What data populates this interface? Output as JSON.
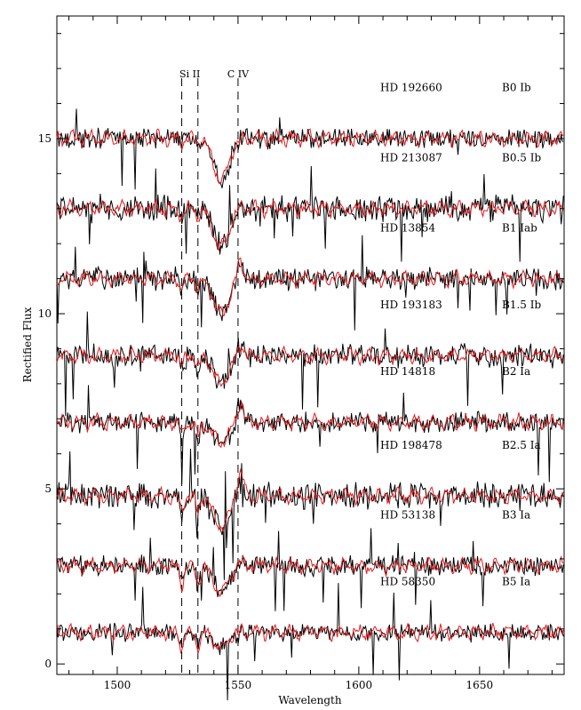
{
  "chart_data": {
    "type": "line",
    "xlabel": "Wavelength",
    "ylabel": "Rectified Flux",
    "xlim": [
      1475,
      1685
    ],
    "ylim": [
      -0.3,
      18.5
    ],
    "x_ticks": [
      1500,
      1550,
      1600,
      1650
    ],
    "y_ticks": [
      0,
      5,
      10,
      15
    ],
    "line_markers": [
      {
        "label": "Si II",
        "x": [
          1526.7,
          1533.4
        ]
      },
      {
        "label": "C IV",
        "x": [
          1550.0
        ]
      }
    ],
    "series_colors": {
      "observed": "#000000",
      "model": "#e31a1c"
    },
    "spectra": [
      {
        "star": "HD 192660",
        "sptype": "B0 Ib",
        "offset": 15.0,
        "civ_depth": 1.2,
        "siii_depth": 0.1,
        "emission": 0.0,
        "noise": 0.22
      },
      {
        "star": "HD 213087",
        "sptype": "B0.5 Ib",
        "offset": 13.0,
        "civ_depth": 1.1,
        "siii_depth": 0.2,
        "emission": 0.1,
        "noise": 0.3
      },
      {
        "star": "HD 13854",
        "sptype": "B1 Iab",
        "offset": 11.0,
        "civ_depth": 1.0,
        "siii_depth": 0.3,
        "emission": 0.5,
        "noise": 0.25
      },
      {
        "star": "HD 193183",
        "sptype": "B1.5 Ib",
        "offset": 8.8,
        "civ_depth": 0.8,
        "siii_depth": 0.35,
        "emission": 0.3,
        "noise": 0.25
      },
      {
        "star": "HD 14818",
        "sptype": "B2 Ia",
        "offset": 6.9,
        "civ_depth": 0.6,
        "siii_depth": 0.4,
        "emission": 0.6,
        "noise": 0.22
      },
      {
        "star": "HD 198478",
        "sptype": "B2.5 Ia",
        "offset": 4.8,
        "civ_depth": 0.9,
        "siii_depth": 0.45,
        "emission": 0.7,
        "noise": 0.3
      },
      {
        "star": "HD 53138",
        "sptype": "B3 Ia",
        "offset": 2.8,
        "civ_depth": 0.7,
        "siii_depth": 0.5,
        "emission": 0.1,
        "noise": 0.22
      },
      {
        "star": "HD 58350",
        "sptype": "B5 Ia",
        "offset": 0.9,
        "civ_depth": 0.4,
        "siii_depth": 0.4,
        "emission": 0.0,
        "noise": 0.2
      }
    ]
  }
}
